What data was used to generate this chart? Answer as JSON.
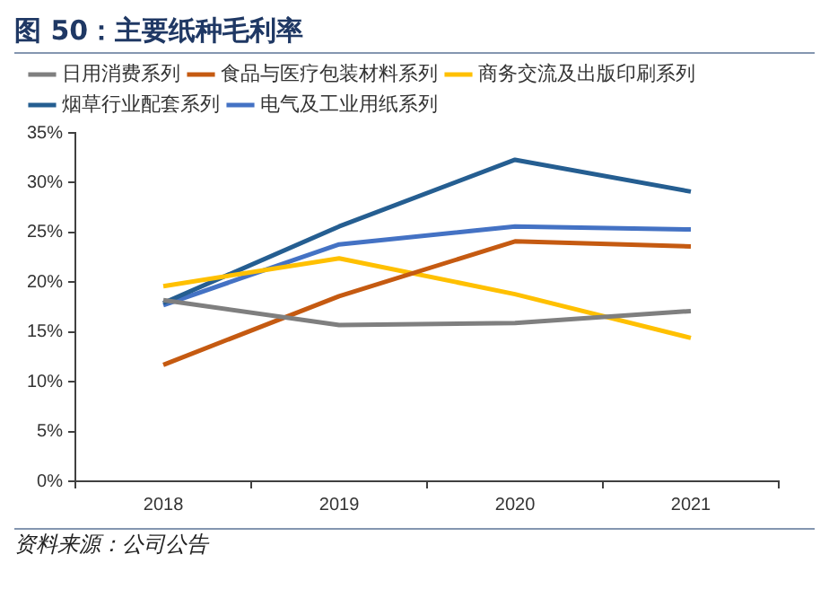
{
  "chart_data": {
    "type": "line",
    "title": "图 50：主要纸种毛利率",
    "annotations": [
      "资料来源：公司公告"
    ],
    "categories": [
      "2018",
      "2019",
      "2020",
      "2021"
    ],
    "series": [
      {
        "name": "日用消费系列",
        "color": "#7f7f7f",
        "values": [
          18.2,
          15.7,
          15.9,
          17.1
        ]
      },
      {
        "name": "食品与医疗包装材料系列",
        "color": "#c55a11",
        "values": [
          11.7,
          18.6,
          24.1,
          23.6
        ]
      },
      {
        "name": "商务交流及出版印刷系列",
        "color": "#ffc000",
        "values": [
          19.6,
          22.4,
          18.8,
          14.4
        ]
      },
      {
        "name": "烟草行业配套系列",
        "color": "#255e91",
        "values": [
          17.9,
          25.6,
          32.3,
          29.1
        ]
      },
      {
        "name": "电气及工业用纸系列",
        "color": "#4472c4",
        "values": [
          17.7,
          23.8,
          25.6,
          25.3
        ]
      }
    ],
    "ylim": [
      0,
      35
    ],
    "yticks": [
      {
        "value": 0,
        "label": "0%"
      },
      {
        "value": 5,
        "label": "5%"
      },
      {
        "value": 10,
        "label": "10%"
      },
      {
        "value": 15,
        "label": "15%"
      },
      {
        "value": 20,
        "label": "20%"
      },
      {
        "value": 25,
        "label": "25%"
      },
      {
        "value": 30,
        "label": "30%"
      },
      {
        "value": 35,
        "label": "35%"
      }
    ],
    "grid": false,
    "legend": "top",
    "marker": "none",
    "line_style": "solid"
  }
}
